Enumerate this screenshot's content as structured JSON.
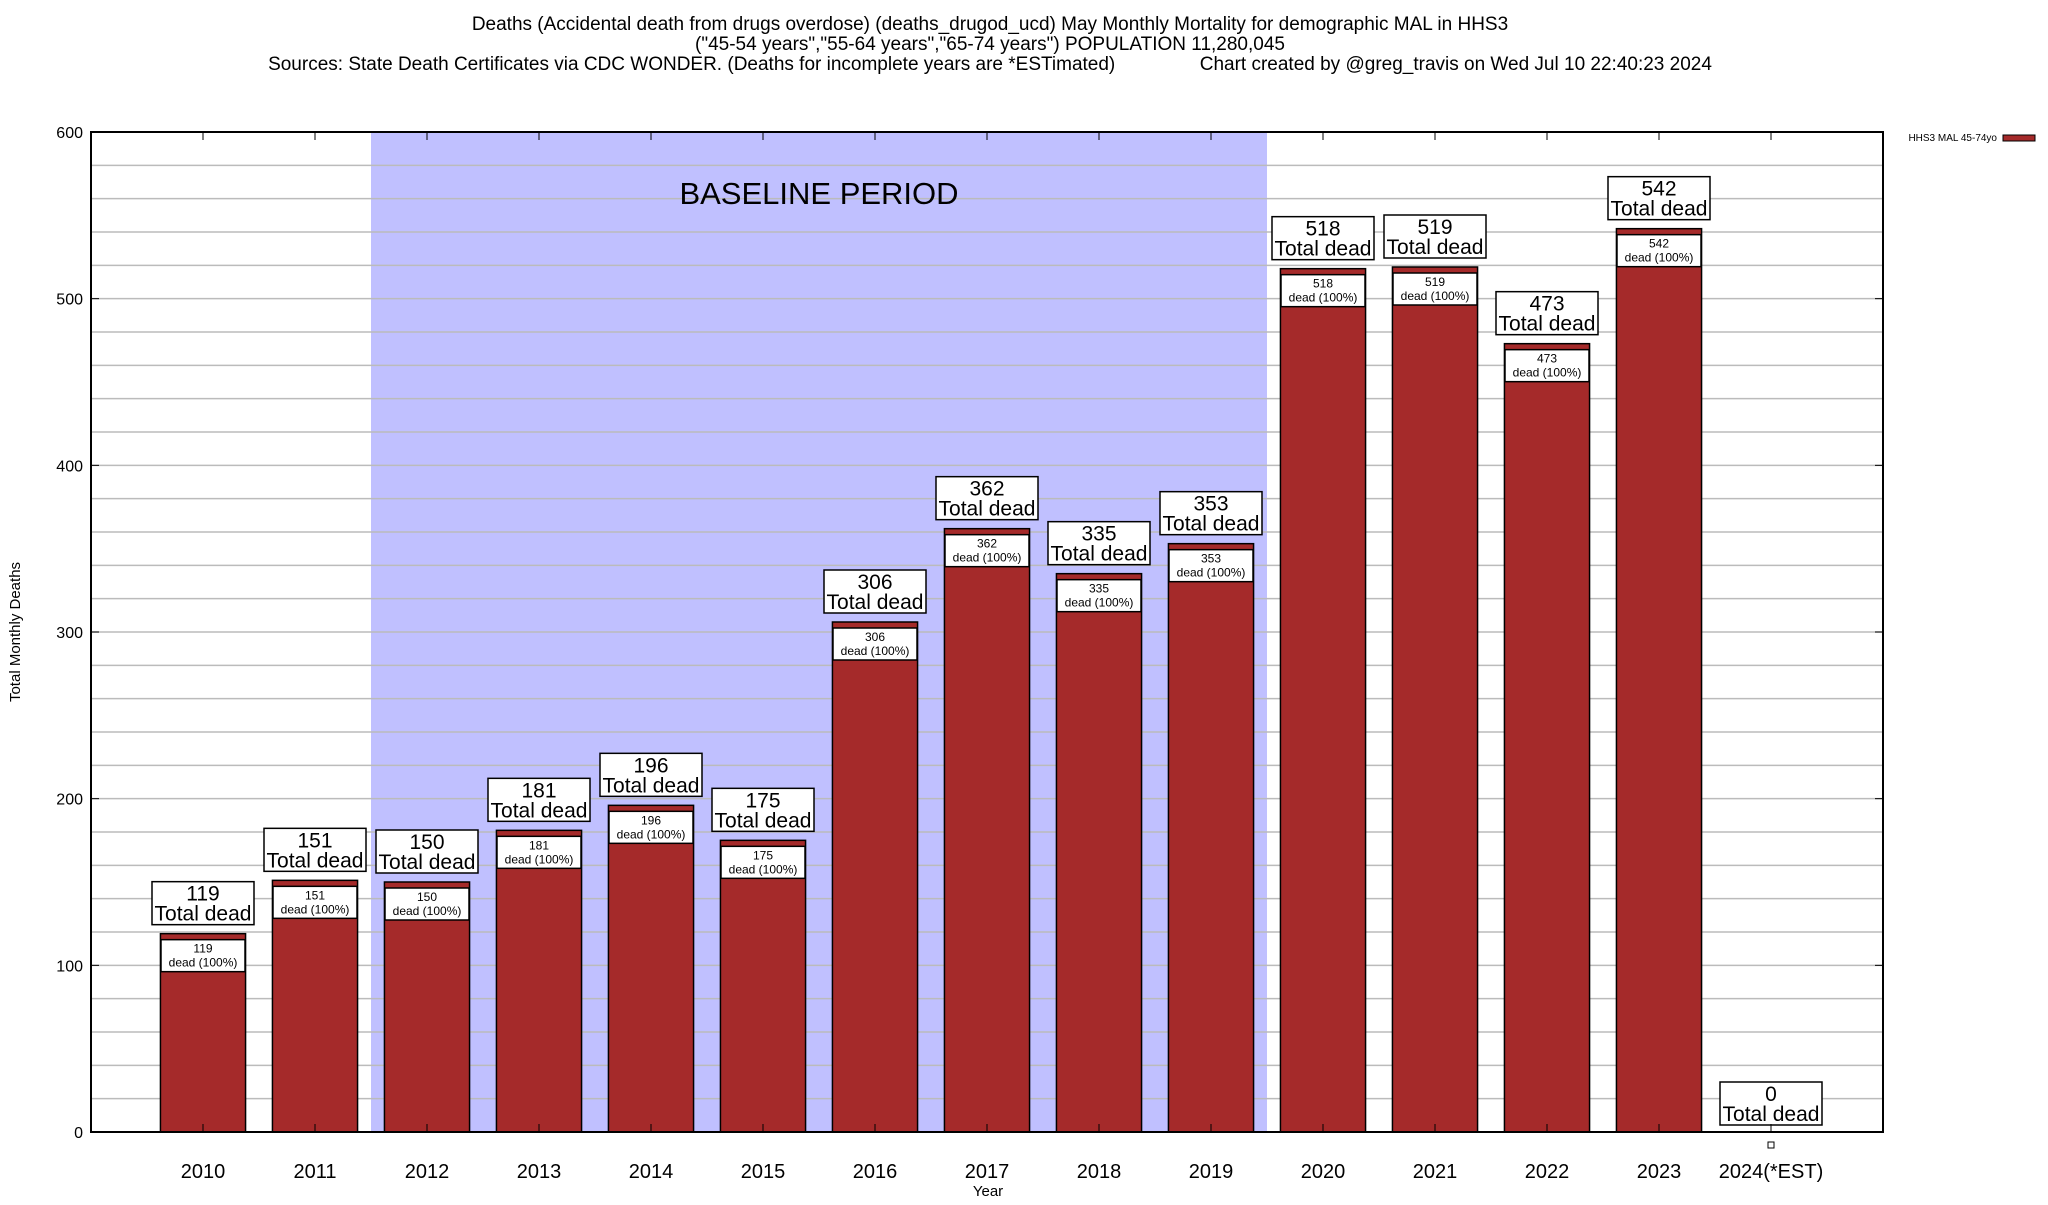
{
  "chart_data": {
    "type": "bar",
    "title_lines": [
      "Deaths (Accidental death from drugs overdose) (deaths_drugod_ucd) May Monthly Mortality for demographic MAL in HHS3",
      "(\"45-54 years\",\"55-64 years\",\"65-74 years\") POPULATION 11,280,045",
      "Sources: State Death Certificates via CDC WONDER. (Deaths for incomplete years are *ESTimated)                Chart created by @greg_travis on Wed Jul 10 22:40:23 2024"
    ],
    "xlabel": "Year",
    "ylabel": "Total Monthly Deaths",
    "ylim": [
      0,
      600
    ],
    "yticks": [
      0,
      100,
      200,
      300,
      400,
      500,
      600
    ],
    "minor_grid_step": 20,
    "grid": true,
    "legend": {
      "position": "top-right",
      "label": "HHS3 MAL 45-74yo"
    },
    "categories": [
      "2010",
      "2011",
      "2012",
      "2013",
      "2014",
      "2015",
      "2016",
      "2017",
      "2018",
      "2019",
      "2020",
      "2021",
      "2022",
      "2023",
      "2024(*EST)"
    ],
    "series": [
      {
        "name": "HHS3 MAL 45-74yo",
        "color": "#a52a2a",
        "values": [
          119,
          151,
          150,
          181,
          196,
          175,
          306,
          362,
          335,
          353,
          518,
          519,
          473,
          542,
          0
        ]
      }
    ],
    "total_label_suffix": "Total dead",
    "inner_label_suffix": "dead (100%)",
    "baseline": {
      "label": "BASELINE PERIOD",
      "from": "2012",
      "to": "2019",
      "color": "#c0c0ff"
    }
  }
}
